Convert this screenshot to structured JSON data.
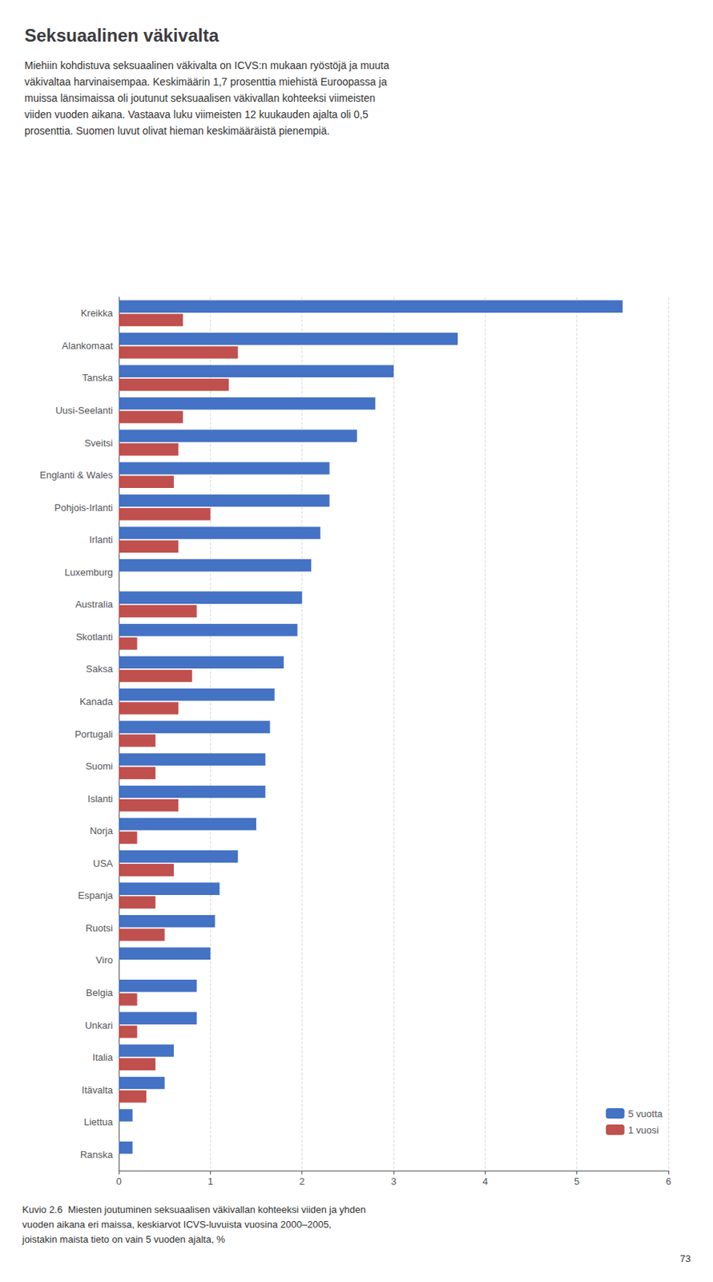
{
  "chart_data": {
    "type": "bar",
    "orientation": "horizontal",
    "title": "Seksuaalinen väkivalta",
    "subtitle": "Miehiin kohdistuva seksuaalinen väkivalta on ICVS:n mukaan ryöstöjä ja muuta\nväkivaltaa harvinaisempaa. Keskimäärin 1,7 prosenttia miehistä Euroopassa ja\nmuissa länsimaissa oli joutunut seksuaalisen väkivallan kohteeksi viimeisten\nviiden vuoden aikana. Vastaava luku viimeisten 12 kuukauden ajalta oli 0,5\nprosenttia. Suomen luvut olivat hieman keskimääräistä pienempiä.",
    "annotations": [
      "Kuvio 2.6  Miesten joutuminen seksuaalisen väkivallan kohteeksi viiden ja yhden\nvuoden aikana eri maissa, keskiarvot ICVS-luvuista vuosina 2000–2005,\njoistakin maista tieto on vain 5 vuoden ajalta, %",
      "73"
    ],
    "categories": [
      "Kreikka",
      "Alankomaat",
      "Tanska",
      "Uusi-Seelanti",
      "Sveitsi",
      "Englanti & Wales",
      "Pohjois-Irlanti",
      "Irlanti",
      "Luxemburg",
      "Australia",
      "Skotlanti",
      "Saksa",
      "Kanada",
      "Portugali",
      "Suomi",
      "Islanti",
      "Norja",
      "USA",
      "Espanja",
      "Ruotsi",
      "Viro",
      "Belgia",
      "Unkari",
      "Italia",
      "Itävalta",
      "Liettua",
      "Ranska"
    ],
    "series": [
      {
        "name": "5 vuotta",
        "color": "#4472C4",
        "values": [
          5.5,
          3.7,
          3.0,
          2.8,
          2.6,
          2.3,
          2.3,
          2.2,
          2.1,
          2.0,
          1.95,
          1.8,
          1.7,
          1.65,
          1.6,
          1.6,
          1.5,
          1.3,
          1.1,
          1.05,
          1.0,
          0.85,
          0.85,
          0.6,
          0.5,
          0.15,
          0.15
        ]
      },
      {
        "name": "1 vuosi",
        "color": "#C0504D",
        "values": [
          0.7,
          1.3,
          1.2,
          0.7,
          0.65,
          0.6,
          1.0,
          0.65,
          0.0,
          0.85,
          0.2,
          0.8,
          0.65,
          0.4,
          0.4,
          0.65,
          0.2,
          0.6,
          0.4,
          0.5,
          0.0,
          0.2,
          0.2,
          0.4,
          0.3,
          0.0,
          0.0
        ]
      }
    ],
    "xlim": [
      0,
      6
    ],
    "xticks": [
      0,
      1,
      2,
      3,
      4,
      5,
      6
    ],
    "grid": true,
    "legend": "lower right"
  }
}
